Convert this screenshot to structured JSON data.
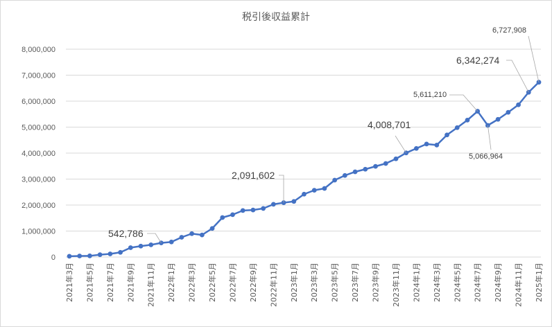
{
  "chart_data": {
    "type": "line",
    "title": "税引後収益累計",
    "xlabel": "",
    "ylabel": "",
    "ylim": [
      0,
      8000000
    ],
    "yticks": [
      "0",
      "1,000,000",
      "2,000,000",
      "3,000,000",
      "4,000,000",
      "5,000,000",
      "6,000,000",
      "7,000,000",
      "8,000,000"
    ],
    "grid": true,
    "legend": "none",
    "colors": {
      "line": "#4472c4",
      "grid": "#d9d9d9",
      "leader": "#a6a6a6"
    },
    "x": [
      "2021年3月",
      "2021年4月",
      "2021年5月",
      "2021年6月",
      "2021年7月",
      "2021年8月",
      "2021年9月",
      "2021年10月",
      "2021年11月",
      "2021年12月",
      "2022年1月",
      "2022年2月",
      "2022年3月",
      "2022年4月",
      "2022年5月",
      "2022年6月",
      "2022年7月",
      "2022年8月",
      "2022年9月",
      "2022年10月",
      "2022年11月",
      "2022年12月",
      "2023年1月",
      "2023年2月",
      "2023年3月",
      "2023年4月",
      "2023年5月",
      "2023年6月",
      "2023年7月",
      "2023年8月",
      "2023年9月",
      "2023年10月",
      "2023年11月",
      "2023年12月",
      "2024年1月",
      "2024年2月",
      "2024年3月",
      "2024年4月",
      "2024年5月",
      "2024年6月",
      "2024年7月",
      "2024年8月",
      "2024年9月",
      "2024年10月",
      "2024年11月",
      "2024年12月",
      "2025年1月"
    ],
    "tick_labels": [
      "2021年3月",
      "2021年5月",
      "2021年7月",
      "2021年9月",
      "2021年11月",
      "2022年1月",
      "2022年3月",
      "2022年5月",
      "2022年7月",
      "2022年9月",
      "2022年11月",
      "2023年1月",
      "2023年3月",
      "2023年5月",
      "2023年7月",
      "2023年9月",
      "2023年11月",
      "2024年1月",
      "2024年3月",
      "2024年5月",
      "2024年7月",
      "2024年9月",
      "2024年11月",
      "2025年1月"
    ],
    "series": [
      {
        "values": [
          30000,
          40000,
          45000,
          90000,
          120000,
          180000,
          360000,
          420000,
          470000,
          542786,
          580000,
          760000,
          900000,
          850000,
          1100000,
          1520000,
          1630000,
          1790000,
          1810000,
          1870000,
          2030000,
          2091602,
          2140000,
          2420000,
          2570000,
          2640000,
          2960000,
          3140000,
          3280000,
          3380000,
          3490000,
          3600000,
          3780000,
          4008701,
          4180000,
          4350000,
          4310000,
          4700000,
          4980000,
          5270000,
          5611210,
          5066964,
          5300000,
          5570000,
          5860000,
          6342274,
          6727908
        ]
      }
    ],
    "annotations": [
      {
        "text": "542,786",
        "index": 9,
        "size": "lg"
      },
      {
        "text": "2,091,602",
        "index": 21,
        "size": "lg"
      },
      {
        "text": "4,008,701",
        "index": 33,
        "size": "lg"
      },
      {
        "text": "5,611,210",
        "index": 40,
        "size": "sm"
      },
      {
        "text": "5,066,964",
        "index": 41,
        "size": "sm"
      },
      {
        "text": "6,342,274",
        "index": 45,
        "size": "lg"
      },
      {
        "text": "6,727,908",
        "index": 46,
        "size": "sm"
      }
    ]
  }
}
